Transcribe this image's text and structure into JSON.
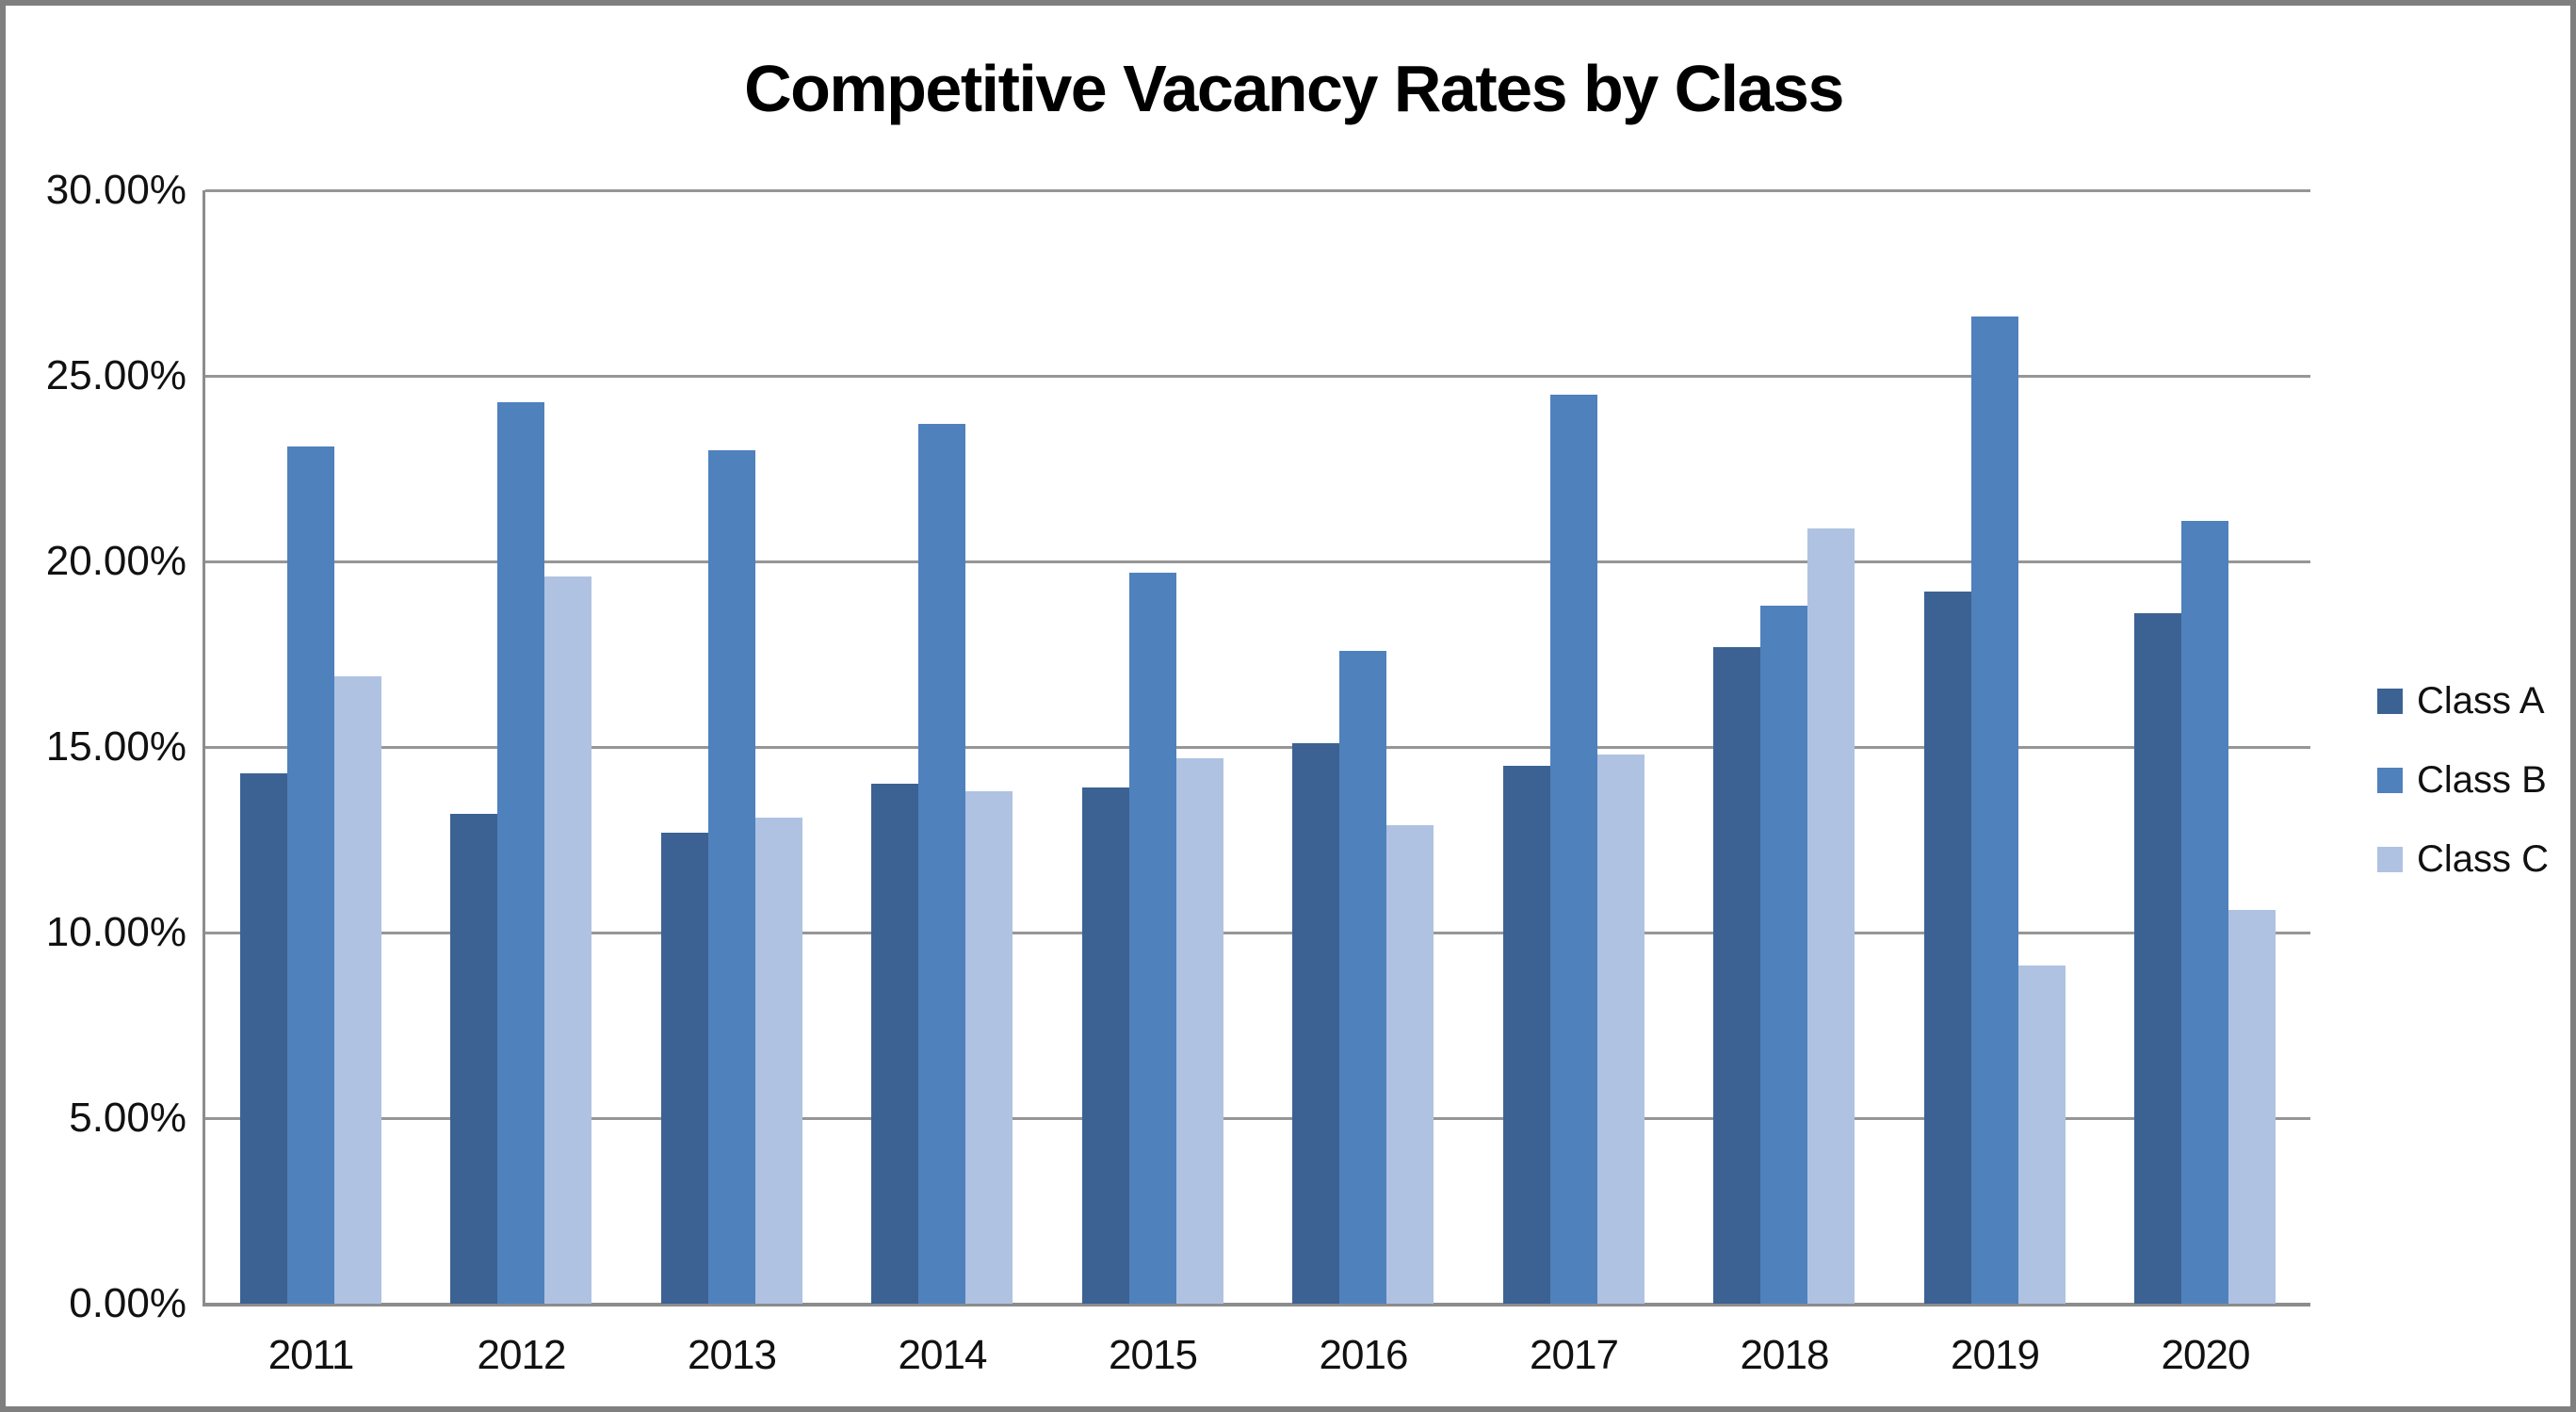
{
  "title": "Competitive Vacancy Rates by Class",
  "chart_data": {
    "type": "bar",
    "title": "Competitive Vacancy Rates by Class",
    "categories": [
      "2011",
      "2012",
      "2013",
      "2014",
      "2015",
      "2016",
      "2017",
      "2018",
      "2019",
      "2020"
    ],
    "series": [
      {
        "name": "Class A",
        "color": "#3C6293",
        "values": [
          14.3,
          13.2,
          12.7,
          14.0,
          13.9,
          15.1,
          14.5,
          17.7,
          19.2,
          18.6
        ]
      },
      {
        "name": "Class B",
        "color": "#4F81BD",
        "values": [
          23.1,
          24.3,
          23.0,
          23.7,
          19.7,
          17.6,
          24.5,
          18.8,
          26.6,
          21.1
        ]
      },
      {
        "name": "Class C",
        "color": "#AFC2E2",
        "values": [
          16.9,
          19.6,
          13.1,
          13.8,
          14.7,
          12.9,
          14.8,
          20.9,
          9.1,
          10.6
        ]
      }
    ],
    "xlabel": "",
    "ylabel": "",
    "ylim": [
      0,
      30
    ],
    "ytick_step": 5,
    "y_tick_labels": [
      "0.00%",
      "5.00%",
      "10.00%",
      "15.00%",
      "20.00%",
      "25.00%",
      "30.00%"
    ],
    "grid": true,
    "legend_position": "right-middle",
    "gridline_color": "#969696",
    "axis_color": "#8C8C8C",
    "border_color": "#7F7F7F",
    "background_color": "#FFFFFF",
    "text_color": "#111111"
  }
}
